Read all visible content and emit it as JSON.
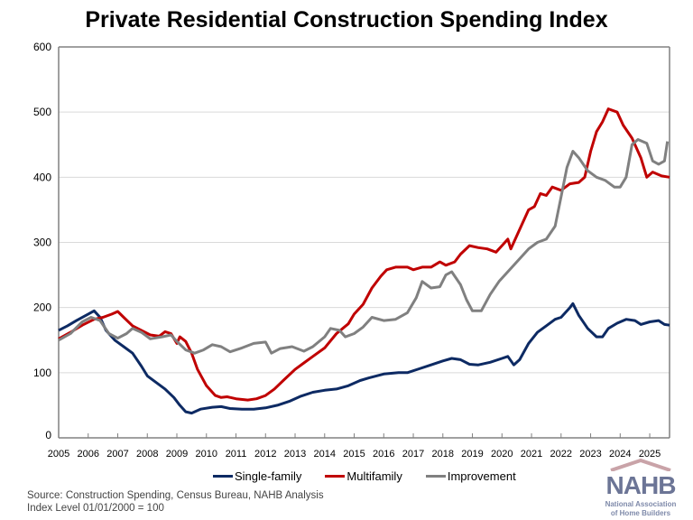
{
  "chart_data": {
    "type": "line",
    "title": "Private Residential Construction Spending Index",
    "xlabel": "",
    "ylabel": "",
    "xlim": [
      2005,
      2025.67
    ],
    "ylim": [
      0,
      600
    ],
    "yticks": [
      0,
      100,
      200,
      300,
      400,
      500,
      600
    ],
    "xticks": [
      2005,
      2006,
      2007,
      2008,
      2009,
      2010,
      2011,
      2012,
      2013,
      2014,
      2015,
      2016,
      2017,
      2018,
      2019,
      2020,
      2021,
      2022,
      2023,
      2024,
      2025
    ],
    "grid": "horizontal",
    "legend_placement": "bottom",
    "series": [
      {
        "name": "Single-family",
        "color": "#0d2a63",
        "points": [
          [
            2005.0,
            165
          ],
          [
            2005.3,
            172
          ],
          [
            2005.6,
            180
          ],
          [
            2006.0,
            190
          ],
          [
            2006.2,
            195
          ],
          [
            2006.4,
            185
          ],
          [
            2006.6,
            165
          ],
          [
            2006.9,
            150
          ],
          [
            2007.2,
            140
          ],
          [
            2007.5,
            130
          ],
          [
            2007.8,
            110
          ],
          [
            2008.0,
            95
          ],
          [
            2008.3,
            85
          ],
          [
            2008.6,
            75
          ],
          [
            2008.9,
            62
          ],
          [
            2009.1,
            50
          ],
          [
            2009.3,
            40
          ],
          [
            2009.5,
            38
          ],
          [
            2009.8,
            44
          ],
          [
            2010.2,
            47
          ],
          [
            2010.5,
            48
          ],
          [
            2010.8,
            45
          ],
          [
            2011.2,
            44
          ],
          [
            2011.6,
            44
          ],
          [
            2012.0,
            46
          ],
          [
            2012.4,
            50
          ],
          [
            2012.8,
            56
          ],
          [
            2013.2,
            64
          ],
          [
            2013.6,
            70
          ],
          [
            2014.0,
            73
          ],
          [
            2014.4,
            75
          ],
          [
            2014.8,
            80
          ],
          [
            2015.2,
            88
          ],
          [
            2015.5,
            92
          ],
          [
            2016.0,
            98
          ],
          [
            2016.5,
            100
          ],
          [
            2016.8,
            100
          ],
          [
            2017.2,
            106
          ],
          [
            2017.6,
            112
          ],
          [
            2018.0,
            118
          ],
          [
            2018.3,
            122
          ],
          [
            2018.6,
            120
          ],
          [
            2018.9,
            113
          ],
          [
            2019.2,
            112
          ],
          [
            2019.6,
            116
          ],
          [
            2020.0,
            122
          ],
          [
            2020.2,
            125
          ],
          [
            2020.4,
            112
          ],
          [
            2020.6,
            120
          ],
          [
            2020.9,
            145
          ],
          [
            2021.2,
            162
          ],
          [
            2021.5,
            172
          ],
          [
            2021.8,
            182
          ],
          [
            2022.0,
            185
          ],
          [
            2022.3,
            200
          ],
          [
            2022.4,
            206
          ],
          [
            2022.6,
            188
          ],
          [
            2022.9,
            168
          ],
          [
            2023.2,
            155
          ],
          [
            2023.4,
            155
          ],
          [
            2023.6,
            168
          ],
          [
            2023.9,
            176
          ],
          [
            2024.2,
            182
          ],
          [
            2024.5,
            180
          ],
          [
            2024.7,
            174
          ],
          [
            2025.0,
            178
          ],
          [
            2025.3,
            180
          ],
          [
            2025.5,
            174
          ],
          [
            2025.67,
            173
          ]
        ]
      },
      {
        "name": "Multifamily",
        "color": "#c00000",
        "points": [
          [
            2005.0,
            152
          ],
          [
            2005.4,
            162
          ],
          [
            2005.8,
            173
          ],
          [
            2006.2,
            182
          ],
          [
            2006.5,
            185
          ],
          [
            2006.8,
            190
          ],
          [
            2007.0,
            194
          ],
          [
            2007.2,
            185
          ],
          [
            2007.5,
            172
          ],
          [
            2007.8,
            165
          ],
          [
            2008.1,
            158
          ],
          [
            2008.4,
            156
          ],
          [
            2008.6,
            163
          ],
          [
            2008.8,
            160
          ],
          [
            2009.0,
            145
          ],
          [
            2009.1,
            155
          ],
          [
            2009.3,
            148
          ],
          [
            2009.5,
            130
          ],
          [
            2009.7,
            105
          ],
          [
            2010.0,
            80
          ],
          [
            2010.3,
            65
          ],
          [
            2010.5,
            62
          ],
          [
            2010.7,
            63
          ],
          [
            2011.0,
            60
          ],
          [
            2011.4,
            58
          ],
          [
            2011.7,
            60
          ],
          [
            2012.0,
            65
          ],
          [
            2012.3,
            75
          ],
          [
            2012.6,
            88
          ],
          [
            2013.0,
            105
          ],
          [
            2013.3,
            115
          ],
          [
            2013.6,
            125
          ],
          [
            2014.0,
            138
          ],
          [
            2014.4,
            160
          ],
          [
            2014.8,
            175
          ],
          [
            2015.0,
            190
          ],
          [
            2015.3,
            205
          ],
          [
            2015.6,
            230
          ],
          [
            2015.9,
            248
          ],
          [
            2016.1,
            258
          ],
          [
            2016.4,
            262
          ],
          [
            2016.8,
            262
          ],
          [
            2017.0,
            258
          ],
          [
            2017.3,
            262
          ],
          [
            2017.6,
            262
          ],
          [
            2017.9,
            270
          ],
          [
            2018.1,
            265
          ],
          [
            2018.4,
            270
          ],
          [
            2018.6,
            282
          ],
          [
            2018.9,
            295
          ],
          [
            2019.2,
            292
          ],
          [
            2019.5,
            290
          ],
          [
            2019.8,
            285
          ],
          [
            2020.0,
            295
          ],
          [
            2020.2,
            305
          ],
          [
            2020.3,
            290
          ],
          [
            2020.6,
            320
          ],
          [
            2020.9,
            350
          ],
          [
            2021.1,
            355
          ],
          [
            2021.3,
            375
          ],
          [
            2021.5,
            372
          ],
          [
            2021.7,
            385
          ],
          [
            2022.0,
            380
          ],
          [
            2022.3,
            390
          ],
          [
            2022.6,
            392
          ],
          [
            2022.8,
            400
          ],
          [
            2023.0,
            440
          ],
          [
            2023.2,
            470
          ],
          [
            2023.4,
            485
          ],
          [
            2023.6,
            505
          ],
          [
            2023.9,
            500
          ],
          [
            2024.1,
            480
          ],
          [
            2024.4,
            460
          ],
          [
            2024.7,
            430
          ],
          [
            2024.9,
            400
          ],
          [
            2025.1,
            408
          ],
          [
            2025.4,
            402
          ],
          [
            2025.67,
            400
          ]
        ]
      },
      {
        "name": "Improvement",
        "color": "#808080",
        "points": [
          [
            2005.0,
            150
          ],
          [
            2005.4,
            160
          ],
          [
            2005.8,
            178
          ],
          [
            2006.1,
            185
          ],
          [
            2006.4,
            180
          ],
          [
            2006.7,
            160
          ],
          [
            2007.0,
            153
          ],
          [
            2007.3,
            160
          ],
          [
            2007.5,
            168
          ],
          [
            2007.8,
            162
          ],
          [
            2008.1,
            152
          ],
          [
            2008.5,
            155
          ],
          [
            2008.8,
            158
          ],
          [
            2009.0,
            148
          ],
          [
            2009.3,
            135
          ],
          [
            2009.6,
            130
          ],
          [
            2009.9,
            135
          ],
          [
            2010.2,
            143
          ],
          [
            2010.5,
            140
          ],
          [
            2010.8,
            132
          ],
          [
            2011.2,
            138
          ],
          [
            2011.6,
            145
          ],
          [
            2012.0,
            147
          ],
          [
            2012.2,
            130
          ],
          [
            2012.5,
            137
          ],
          [
            2012.9,
            140
          ],
          [
            2013.3,
            133
          ],
          [
            2013.6,
            140
          ],
          [
            2014.0,
            155
          ],
          [
            2014.2,
            168
          ],
          [
            2014.5,
            165
          ],
          [
            2014.7,
            155
          ],
          [
            2015.0,
            160
          ],
          [
            2015.3,
            170
          ],
          [
            2015.6,
            185
          ],
          [
            2016.0,
            180
          ],
          [
            2016.4,
            182
          ],
          [
            2016.8,
            192
          ],
          [
            2017.1,
            215
          ],
          [
            2017.3,
            240
          ],
          [
            2017.6,
            230
          ],
          [
            2017.9,
            232
          ],
          [
            2018.1,
            250
          ],
          [
            2018.3,
            255
          ],
          [
            2018.6,
            235
          ],
          [
            2018.8,
            212
          ],
          [
            2019.0,
            195
          ],
          [
            2019.3,
            195
          ],
          [
            2019.6,
            220
          ],
          [
            2019.9,
            240
          ],
          [
            2020.2,
            255
          ],
          [
            2020.5,
            270
          ],
          [
            2020.9,
            290
          ],
          [
            2021.2,
            300
          ],
          [
            2021.5,
            305
          ],
          [
            2021.8,
            325
          ],
          [
            2022.0,
            370
          ],
          [
            2022.2,
            415
          ],
          [
            2022.4,
            440
          ],
          [
            2022.6,
            430
          ],
          [
            2022.9,
            410
          ],
          [
            2023.2,
            400
          ],
          [
            2023.5,
            395
          ],
          [
            2023.8,
            385
          ],
          [
            2024.0,
            385
          ],
          [
            2024.2,
            400
          ],
          [
            2024.4,
            450
          ],
          [
            2024.6,
            458
          ],
          [
            2024.9,
            452
          ],
          [
            2025.1,
            425
          ],
          [
            2025.3,
            420
          ],
          [
            2025.5,
            425
          ],
          [
            2025.6,
            455
          ]
        ]
      }
    ]
  },
  "source_note": "Source: Construction Spending, Census Bureau, NAHB Analysis",
  "index_note": "Index Level 01/01/2000 = 100",
  "logo": {
    "name": "NAHB",
    "subtitle_line1": "National Association",
    "subtitle_line2": "of Home Builders"
  }
}
